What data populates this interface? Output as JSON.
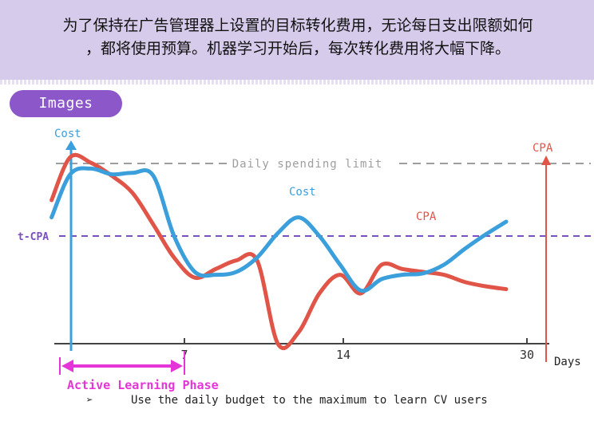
{
  "header": {
    "text_line1": "为了保持在广告管理器上设置的目标转化费用，无论每日支出限额如何",
    "text_line2": "，都将使用预算。机器学习开始后，每次转化费用将大幅下降。"
  },
  "badge": {
    "label": "Images"
  },
  "chart_data": {
    "type": "line",
    "x_axis": {
      "label": "Days",
      "ticks": [
        7,
        14,
        30
      ],
      "tick_labels": [
        "7",
        "14",
        "30"
      ]
    },
    "y_axis": {
      "label": "Cost"
    },
    "series": [
      {
        "name": "Cost",
        "color": "#3b9fdc",
        "x": [
          0.6,
          1.5,
          2.5,
          3.5,
          4.5,
          5.5,
          6.5,
          7.5,
          8.5,
          9.5,
          10.5,
          11.5,
          12.5,
          13.5,
          14.5,
          15.5,
          16.5,
          17.5,
          18.5,
          19.5,
          20.5,
          21.5,
          22.5
        ],
        "y": [
          0.58,
          0.88,
          0.92,
          0.88,
          0.89,
          0.87,
          0.45,
          0.2,
          0.18,
          0.2,
          0.3,
          0.47,
          0.58,
          0.45,
          0.25,
          0.07,
          0.15,
          0.18,
          0.19,
          0.25,
          0.36,
          0.46,
          0.55
        ]
      },
      {
        "name": "CPA",
        "color": "#e05548",
        "x": [
          0.6,
          1.5,
          2.5,
          3.5,
          4.5,
          5.5,
          6.5,
          7.5,
          8.5,
          9.5,
          10.5,
          11.5,
          12.5,
          13.5,
          14.5,
          15.5,
          16.5,
          17.5,
          18.5,
          19.5,
          20.5,
          21.5,
          22.5
        ],
        "y": [
          0.7,
          1.0,
          0.96,
          0.87,
          0.75,
          0.53,
          0.3,
          0.16,
          0.22,
          0.28,
          0.28,
          -0.3,
          -0.22,
          0.05,
          0.18,
          0.05,
          0.25,
          0.22,
          0.2,
          0.18,
          0.13,
          0.1,
          0.08
        ]
      }
    ],
    "reference_lines": [
      {
        "label": "Daily spending limit",
        "color": "#9e9e9e",
        "style": "dashed",
        "y": 0.93
      },
      {
        "label": "t-CPA",
        "color": "#7a4fc0",
        "style": "dashed",
        "y": 0.29
      }
    ],
    "annotations": {
      "cost_label": "Cost",
      "cpa_label": "CPA",
      "cpa_axis_label": "CPA",
      "phase_label": "Active Learning Phase",
      "phase_range": [
        0,
        7
      ]
    },
    "colors": {
      "cost": "#3b9fdc",
      "cpa": "#e05548",
      "phase": "#e535d8",
      "tcpa": "#7a4fc0",
      "limit": "#9e9e9e"
    }
  },
  "bullet": {
    "symbol": "➢",
    "text": "Use the daily budget to the maximum to learn CV users"
  }
}
